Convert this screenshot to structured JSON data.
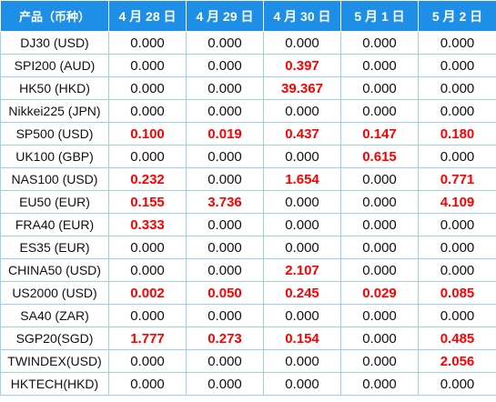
{
  "table": {
    "headers": [
      "产品（币种）",
      "4 月 28 日",
      "4 月 29 日",
      "4 月 30 日",
      "5 月 1 日",
      "5 月 2 日"
    ],
    "highlight_color": "#ff0000",
    "header_bg": "#1e8fe6",
    "rows": [
      {
        "name": "DJ30 (USD)",
        "values": [
          "0.000",
          "0.000",
          "0.000",
          "0.000",
          "0.000"
        ],
        "highlight": [
          false,
          false,
          false,
          false,
          false
        ]
      },
      {
        "name": "SPI200 (AUD)",
        "values": [
          "0.000",
          "0.000",
          "0.397",
          "0.000",
          "0.000"
        ],
        "highlight": [
          false,
          false,
          true,
          false,
          false
        ]
      },
      {
        "name": "HK50 (HKD)",
        "values": [
          "0.000",
          "0.000",
          "39.367",
          "0.000",
          "0.000"
        ],
        "highlight": [
          false,
          false,
          true,
          false,
          false
        ]
      },
      {
        "name": "Nikkei225 (JPN)",
        "values": [
          "0.000",
          "0.000",
          "0.000",
          "0.000",
          "0.000"
        ],
        "highlight": [
          false,
          false,
          false,
          false,
          false
        ]
      },
      {
        "name": "SP500 (USD)",
        "values": [
          "0.100",
          "0.019",
          "0.437",
          "0.147",
          "0.180"
        ],
        "highlight": [
          true,
          true,
          true,
          true,
          true
        ]
      },
      {
        "name": "UK100 (GBP)",
        "values": [
          "0.000",
          "0.000",
          "0.000",
          "0.615",
          "0.000"
        ],
        "highlight": [
          false,
          false,
          false,
          true,
          false
        ]
      },
      {
        "name": "NAS100 (USD)",
        "values": [
          "0.232",
          "0.000",
          "1.654",
          "0.000",
          "0.771"
        ],
        "highlight": [
          true,
          false,
          true,
          false,
          true
        ]
      },
      {
        "name": "EU50 (EUR)",
        "values": [
          "0.155",
          "3.736",
          "0.000",
          "0.000",
          "4.109"
        ],
        "highlight": [
          true,
          true,
          false,
          false,
          true
        ]
      },
      {
        "name": "FRA40 (EUR)",
        "values": [
          "0.333",
          "0.000",
          "0.000",
          "0.000",
          "0.000"
        ],
        "highlight": [
          true,
          false,
          false,
          false,
          false
        ]
      },
      {
        "name": "ES35 (EUR)",
        "values": [
          "0.000",
          "0.000",
          "0.000",
          "0.000",
          "0.000"
        ],
        "highlight": [
          false,
          false,
          false,
          false,
          false
        ]
      },
      {
        "name": "CHINA50 (USD)",
        "values": [
          "0.000",
          "0.000",
          "2.107",
          "0.000",
          "0.000"
        ],
        "highlight": [
          false,
          false,
          true,
          false,
          false
        ]
      },
      {
        "name": "US2000 (USD)",
        "values": [
          "0.002",
          "0.050",
          "0.245",
          "0.029",
          "0.085"
        ],
        "highlight": [
          true,
          true,
          true,
          true,
          true
        ]
      },
      {
        "name": "SA40 (ZAR)",
        "values": [
          "0.000",
          "0.000",
          "0.000",
          "0.000",
          "0.000"
        ],
        "highlight": [
          false,
          false,
          false,
          false,
          false
        ]
      },
      {
        "name": "SGP20(SGD)",
        "values": [
          "1.777",
          "0.273",
          "0.154",
          "0.000",
          "0.485"
        ],
        "highlight": [
          true,
          true,
          true,
          false,
          true
        ]
      },
      {
        "name": "TWINDEX(USD)",
        "values": [
          "0.000",
          "0.000",
          "0.000",
          "0.000",
          "2.056"
        ],
        "highlight": [
          false,
          false,
          false,
          false,
          true
        ]
      },
      {
        "name": "HKTECH(HKD)",
        "values": [
          "0.000",
          "0.000",
          "0.000",
          "0.000",
          "0.000"
        ],
        "highlight": [
          false,
          false,
          false,
          false,
          false
        ]
      }
    ]
  }
}
